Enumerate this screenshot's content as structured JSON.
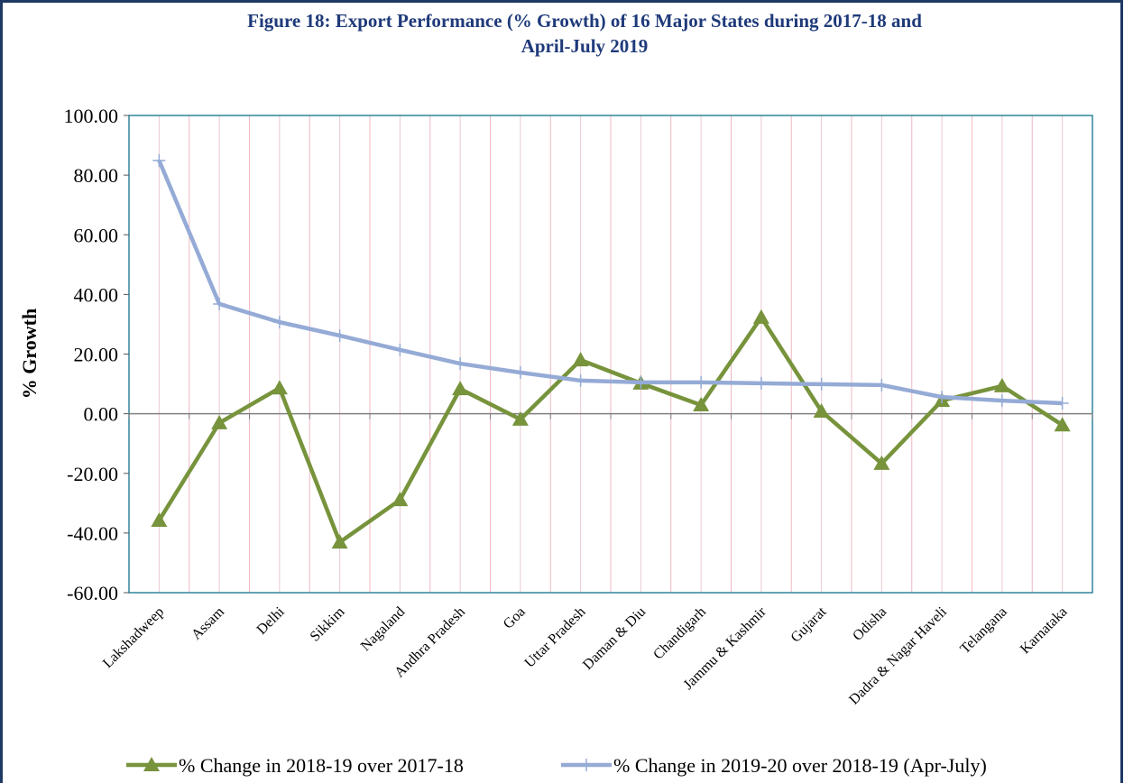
{
  "chart_data": {
    "type": "line",
    "title": [
      "Figure 18: Export Performance (% Growth) of 16 Major States during 2017-18 and",
      "April-July 2019"
    ],
    "y_label": "% Growth",
    "categories": [
      "Lakshadweep",
      "Assam",
      "Delhi",
      "Sikkim",
      "Nagaland",
      "Andhra Pradesh",
      "Goa",
      "Uttar Pradesh",
      "Daman & Diu",
      "Chandigarh",
      "Jammu & Kashmir",
      "Gujarat",
      "Odisha",
      "Dadra & Nagar Haveli",
      "Telangana",
      "Karnataka"
    ],
    "series": [
      {
        "name": "% Change in 2018-19 over 2017-18",
        "color": "#77933c",
        "marker": "triangle",
        "values": [
          -35.8,
          -3.1,
          8.6,
          -43.1,
          -28.9,
          8.3,
          -1.9,
          18.0,
          10.2,
          2.9,
          32.3,
          0.8,
          -16.7,
          4.4,
          9.3,
          -3.8
        ]
      },
      {
        "name": "% Change in 2019-20 over 2018-19 (Apr-July)",
        "color": "#95abd6",
        "marker": "cross",
        "values": [
          84.9,
          36.8,
          30.7,
          26.2,
          21.4,
          16.8,
          13.8,
          11.1,
          10.5,
          10.5,
          10.2,
          9.9,
          9.6,
          5.6,
          4.4,
          3.5
        ]
      }
    ],
    "ylim": [
      -60,
      100
    ],
    "yticks": [
      {
        "value": -60,
        "label": "-60.00"
      },
      {
        "value": -40,
        "label": "-40.00"
      },
      {
        "value": -20,
        "label": "-20.00"
      },
      {
        "value": 0,
        "label": "0.00"
      },
      {
        "value": 20,
        "label": "20.00"
      },
      {
        "value": 40,
        "label": "40.00"
      },
      {
        "value": 60,
        "label": "60.00"
      },
      {
        "value": 80,
        "label": "80.00"
      },
      {
        "value": 100,
        "label": "100.00"
      }
    ],
    "legend": "bottom"
  }
}
